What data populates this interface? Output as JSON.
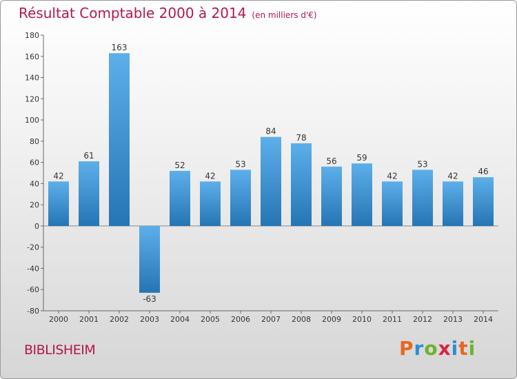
{
  "title": "Résultat Comptable 2000 à 2014",
  "unit_note": "(en milliers d'€)",
  "commune": "BIBLISHEIM",
  "logo": {
    "text": "Proxiti",
    "colors": [
      "#e8671f",
      "#2c8fd6",
      "#6ab42d",
      "#d9243e",
      "#2c8fd6",
      "#e8671f",
      "#6ab42d"
    ]
  },
  "colors": {
    "title": "#b5174b",
    "bar_top": "#5dafea",
    "bar_bottom": "#2575b4"
  },
  "chart_data": {
    "type": "bar",
    "title": "Résultat Comptable 2000 à 2014",
    "xlabel": "",
    "ylabel": "",
    "categories": [
      "2000",
      "2001",
      "2002",
      "2003",
      "2004",
      "2005",
      "2006",
      "2007",
      "2008",
      "2009",
      "2010",
      "2011",
      "2012",
      "2013",
      "2014"
    ],
    "values": [
      42,
      61,
      163,
      -63,
      52,
      42,
      53,
      84,
      78,
      56,
      59,
      42,
      53,
      42,
      46
    ],
    "ylim": [
      -80,
      180
    ],
    "yticks": [
      -80,
      -60,
      -40,
      -20,
      0,
      20,
      40,
      60,
      80,
      100,
      120,
      140,
      160,
      180
    ],
    "grid": false,
    "legend": "none",
    "data_labels": true
  }
}
